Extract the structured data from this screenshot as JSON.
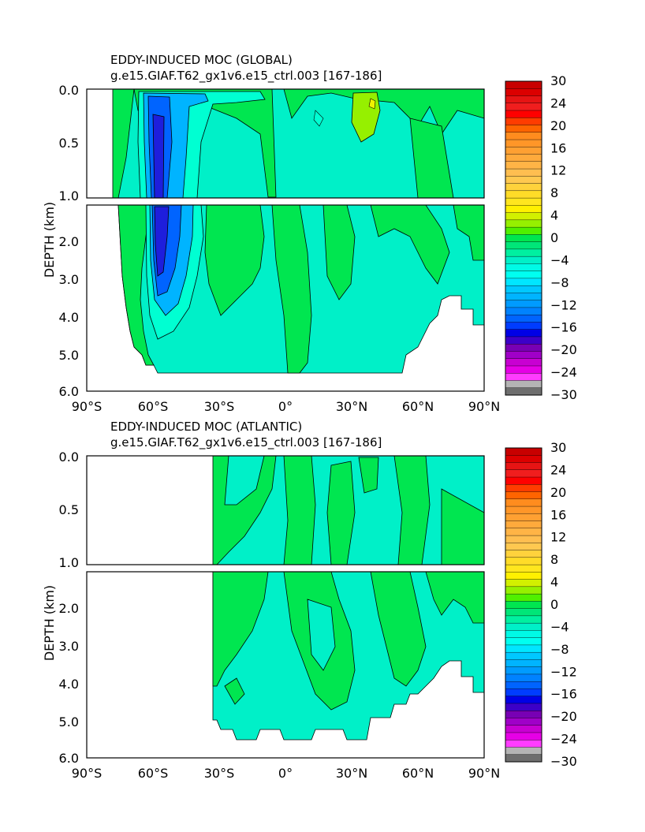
{
  "chart_data": [
    {
      "type": "heatmap",
      "title": "EDDY-INDUCED MOC (GLOBAL)",
      "subtitle": "g.e15.GIAF.T62_gx1v6.e15_ctrl.003 [167-186]",
      "xlabel": "",
      "ylabel": "DEPTH (km)",
      "xlim": [
        -90,
        90
      ],
      "x_tick_labels": [
        "90°S",
        "60°S",
        "30°S",
        "0°",
        "30°N",
        "60°N",
        "90°N"
      ],
      "y_tick_labels_upper": [
        "0.0",
        "0.5",
        "1.0"
      ],
      "y_tick_labels_lower": [
        "2.0",
        "3.0",
        "4.0",
        "5.0",
        "6.0"
      ],
      "ylim_upper": [
        0,
        1
      ],
      "ylim_lower": [
        1,
        6
      ],
      "colorbar_labels": [
        "30",
        "24",
        "20",
        "16",
        "12",
        "8",
        "4",
        "0",
        "-4",
        "-8",
        "-12",
        "-16",
        "-20",
        "-24",
        "-30"
      ],
      "features": [
        {
          "lat": -55,
          "depth": 2.3,
          "value": -18
        },
        {
          "lat": 35,
          "depth": 0.2,
          "value": 3
        }
      ]
    },
    {
      "type": "heatmap",
      "title": "EDDY-INDUCED MOC (ATLANTIC)",
      "subtitle": "g.e15.GIAF.T62_gx1v6.e15_ctrl.003 [167-186]",
      "xlabel": "",
      "ylabel": "DEPTH (km)",
      "xlim": [
        -90,
        90
      ],
      "x_tick_labels": [
        "90°S",
        "60°S",
        "30°S",
        "0°",
        "30°N",
        "60°N",
        "90°N"
      ],
      "y_tick_labels_upper": [
        "0.0",
        "0.5",
        "1.0"
      ],
      "y_tick_labels_lower": [
        "2.0",
        "3.0",
        "4.0",
        "5.0",
        "6.0"
      ],
      "ylim_upper": [
        0,
        1
      ],
      "ylim_lower": [
        1,
        6
      ],
      "colorbar_labels": [
        "30",
        "24",
        "20",
        "16",
        "12",
        "8",
        "4",
        "0",
        "-4",
        "-8",
        "-12",
        "-16",
        "-20",
        "-24",
        "-30"
      ],
      "features": [
        {
          "lat": 10,
          "depth": 2.5,
          "value": 1
        }
      ]
    }
  ],
  "colors": {
    "land": "#ffffff",
    "neg_0_4": "#00f0b4",
    "pos_0_4": "#00e650",
    "pos_4_8": "#96f000",
    "neg_4_8": "#00ffd2",
    "neg_8_12": "#00b4ff",
    "neg_12_16": "#0064ff",
    "neg_16_20": "#1e1edc",
    "colorbar": [
      "#c80000",
      "#dc0000",
      "#e61414",
      "#f01e1e",
      "#ff0000",
      "#ff3c00",
      "#ff6400",
      "#ff8c1e",
      "#ff9628",
      "#ffa032",
      "#ffaa3c",
      "#ffb446",
      "#ffbe50",
      "#ffc850",
      "#ffd23c",
      "#ffdc28",
      "#ffe61e",
      "#fff000",
      "#d2f000",
      "#96f000",
      "#50f000",
      "#00e650",
      "#00e678",
      "#00f0a0",
      "#00f0c8",
      "#00fae6",
      "#00fff0",
      "#00e6ff",
      "#00c8ff",
      "#00b4ff",
      "#009bff",
      "#0082ff",
      "#0064ff",
      "#003cff",
      "#0000e6",
      "#3c00c8",
      "#7800b4",
      "#a000c8",
      "#c800d2",
      "#e600e6",
      "#ff3cff",
      "#b4b4b4",
      "#6e6e6e"
    ]
  }
}
